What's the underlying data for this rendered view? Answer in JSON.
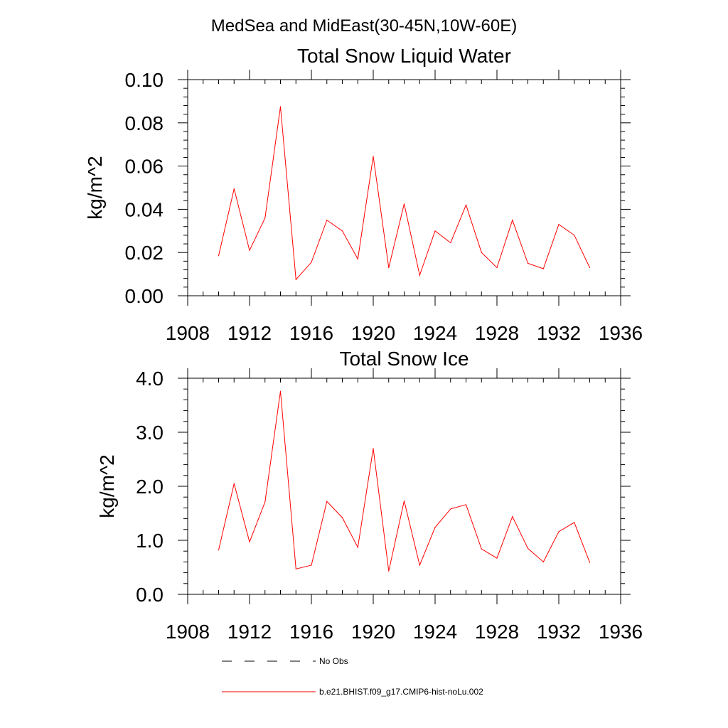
{
  "figure": {
    "suptitle": "MedSea and MidEast(30-45N,10W-60E)"
  },
  "colors": {
    "series": "#ff0000",
    "no_obs": "#000000",
    "axes": "#000000"
  },
  "legend": {
    "placement": "bottom-left",
    "items": [
      {
        "label": "No Obs",
        "style": "dashed",
        "color": "#000000"
      },
      {
        "label": "b.e21.BHIST.f09_g17.CMIP6-hist-noLu.002",
        "style": "solid",
        "color": "#ff0000"
      }
    ]
  },
  "chart_data": [
    {
      "type": "line",
      "title": "Total Snow Liquid Water",
      "xlabel": "",
      "ylabel": "kg/m^2",
      "xlim": [
        1908,
        1936
      ],
      "ylim": [
        0.0,
        0.1
      ],
      "xticks": [
        1908,
        1912,
        1916,
        1920,
        1924,
        1928,
        1932,
        1936
      ],
      "xtick_labels": [
        "1908",
        "1912",
        "1916",
        "1920",
        "1924",
        "1928",
        "1932",
        "1936"
      ],
      "yticks": [
        0.0,
        0.02,
        0.04,
        0.06,
        0.08,
        0.1
      ],
      "ytick_labels": [
        "0.00",
        "0.02",
        "0.04",
        "0.06",
        "0.08",
        "0.10"
      ],
      "grid": false,
      "series": [
        {
          "name": "b.e21.BHIST.f09_g17.CMIP6-hist-noLu.002",
          "color": "#ff0000",
          "x": [
            1910,
            1911,
            1912,
            1913,
            1914,
            1915,
            1916,
            1917,
            1918,
            1919,
            1920,
            1921,
            1922,
            1923,
            1924,
            1925,
            1926,
            1927,
            1928,
            1929,
            1930,
            1931,
            1932,
            1933,
            1934
          ],
          "y": [
            0.0185,
            0.0495,
            0.021,
            0.036,
            0.0875,
            0.0075,
            0.0155,
            0.035,
            0.03,
            0.017,
            0.0645,
            0.013,
            0.0425,
            0.0095,
            0.03,
            0.0245,
            0.042,
            0.02,
            0.013,
            0.035,
            0.015,
            0.0125,
            0.033,
            0.028,
            0.013
          ]
        }
      ]
    },
    {
      "type": "line",
      "title": "Total Snow Ice",
      "xlabel": "",
      "ylabel": "kg/m^2",
      "xlim": [
        1908,
        1936
      ],
      "ylim": [
        0.0,
        4.0
      ],
      "xticks": [
        1908,
        1912,
        1916,
        1920,
        1924,
        1928,
        1932,
        1936
      ],
      "xtick_labels": [
        "1908",
        "1912",
        "1916",
        "1920",
        "1924",
        "1928",
        "1932",
        "1936"
      ],
      "yticks": [
        0.0,
        1.0,
        2.0,
        3.0,
        4.0
      ],
      "ytick_labels": [
        "0.0",
        "1.0",
        "2.0",
        "3.0",
        "4.0"
      ],
      "grid": false,
      "series": [
        {
          "name": "b.e21.BHIST.f09_g17.CMIP6-hist-noLu.002",
          "color": "#ff0000",
          "x": [
            1910,
            1911,
            1912,
            1913,
            1914,
            1915,
            1916,
            1917,
            1918,
            1919,
            1920,
            1921,
            1922,
            1923,
            1924,
            1925,
            1926,
            1927,
            1928,
            1929,
            1930,
            1931,
            1932,
            1933,
            1934
          ],
          "y": [
            0.82,
            2.05,
            0.97,
            1.71,
            3.76,
            0.47,
            0.54,
            1.72,
            1.42,
            0.87,
            2.7,
            0.43,
            1.73,
            0.54,
            1.24,
            1.58,
            1.66,
            0.84,
            0.67,
            1.44,
            0.85,
            0.6,
            1.16,
            1.33,
            0.59
          ]
        }
      ]
    }
  ]
}
